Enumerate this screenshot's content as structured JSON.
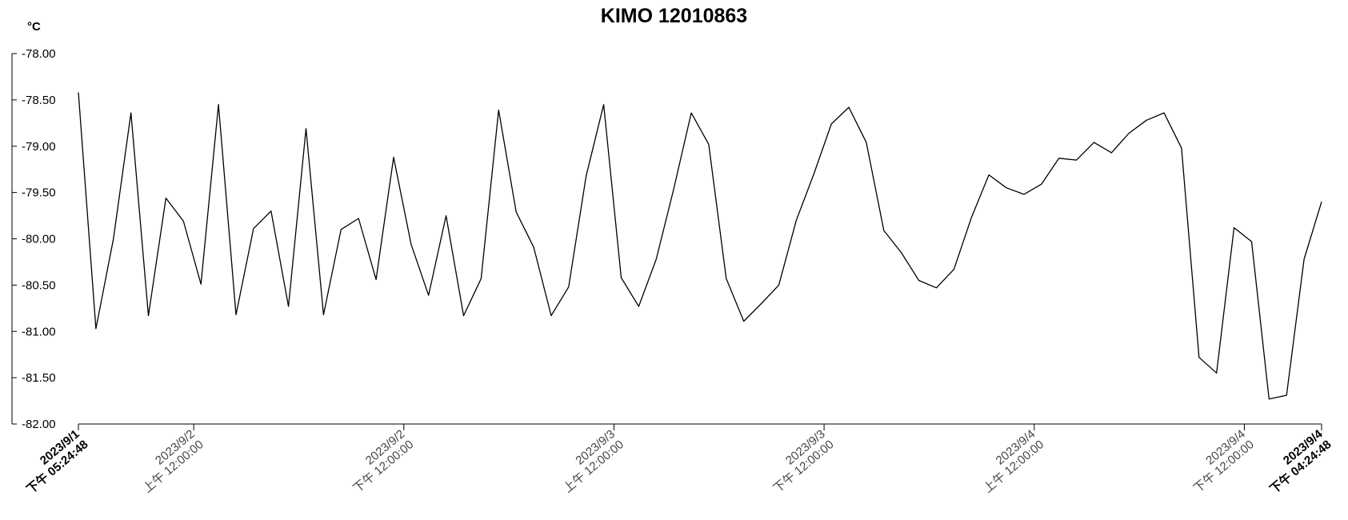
{
  "chart_data": {
    "type": "line",
    "title": "KIMO 12010863",
    "ylabel": "°C",
    "xlabel": "",
    "ylim": [
      -82.0,
      -78.0
    ],
    "yticks": [
      "-78.00",
      "-78.50",
      "-79.00",
      "-79.50",
      "-80.00",
      "-80.50",
      "-81.00",
      "-81.50",
      "-82.00"
    ],
    "xlim": [
      "2023-09-01T17:24:48",
      "2023-09-04T16:24:48"
    ],
    "xtick_labels": [
      {
        "t": "2023-09-01T17:24:48",
        "line1": "2023/9/1",
        "line2": "下午 05:24:48",
        "bold": true
      },
      {
        "t": "2023-09-02T00:00:00",
        "line1": "2023/9/2",
        "line2": "上午 12:00:00",
        "bold": false
      },
      {
        "t": "2023-09-02T12:00:00",
        "line1": "2023/9/2",
        "line2": "下午 12:00:00",
        "bold": false
      },
      {
        "t": "2023-09-03T00:00:00",
        "line1": "2023/9/3",
        "line2": "上午 12:00:00",
        "bold": false
      },
      {
        "t": "2023-09-03T12:00:00",
        "line1": "2023/9/3",
        "line2": "下午 12:00:00",
        "bold": false
      },
      {
        "t": "2023-09-04T00:00:00",
        "line1": "2023/9/4",
        "line2": "上午 12:00:00",
        "bold": false
      },
      {
        "t": "2023-09-04T12:00:00",
        "line1": "2023/9/4",
        "line2": "下午 12:00:00",
        "bold": false
      },
      {
        "t": "2023-09-04T16:24:48",
        "line1": "2023/9/4",
        "line2": "下午 04:24:48",
        "bold": true
      }
    ],
    "grid": false,
    "legend": "none",
    "series": [
      {
        "color": "#000000",
        "points": [
          [
            "2023-09-01T17:24:48",
            -78.42
          ],
          [
            "2023-09-01T18:24:48",
            -80.97
          ],
          [
            "2023-09-01T19:24:48",
            -80.0
          ],
          [
            "2023-09-01T20:24:48",
            -78.64
          ],
          [
            "2023-09-01T21:24:48",
            -80.83
          ],
          [
            "2023-09-01T22:24:48",
            -79.56
          ],
          [
            "2023-09-01T23:24:48",
            -79.81
          ],
          [
            "2023-09-02T00:24:48",
            -80.49
          ],
          [
            "2023-09-02T01:24:48",
            -78.55
          ],
          [
            "2023-09-02T02:24:48",
            -80.82
          ],
          [
            "2023-09-02T03:24:48",
            -79.89
          ],
          [
            "2023-09-02T04:24:48",
            -79.7
          ],
          [
            "2023-09-02T05:24:48",
            -80.73
          ],
          [
            "2023-09-02T06:24:48",
            -78.81
          ],
          [
            "2023-09-02T07:24:48",
            -80.82
          ],
          [
            "2023-09-02T08:24:48",
            -79.9
          ],
          [
            "2023-09-02T09:24:48",
            -79.78
          ],
          [
            "2023-09-02T10:24:48",
            -80.44
          ],
          [
            "2023-09-02T11:24:48",
            -79.12
          ],
          [
            "2023-09-02T12:24:48",
            -80.06
          ],
          [
            "2023-09-02T13:24:48",
            -80.61
          ],
          [
            "2023-09-02T14:24:48",
            -79.75
          ],
          [
            "2023-09-02T15:24:48",
            -80.83
          ],
          [
            "2023-09-02T16:24:48",
            -80.43
          ],
          [
            "2023-09-02T17:24:48",
            -78.61
          ],
          [
            "2023-09-02T18:24:48",
            -79.71
          ],
          [
            "2023-09-02T19:24:48",
            -80.09
          ],
          [
            "2023-09-02T20:24:48",
            -80.83
          ],
          [
            "2023-09-02T21:24:48",
            -80.52
          ],
          [
            "2023-09-02T22:24:48",
            -79.32
          ],
          [
            "2023-09-02T23:24:48",
            -78.55
          ],
          [
            "2023-09-03T00:24:48",
            -80.42
          ],
          [
            "2023-09-03T01:24:48",
            -80.73
          ],
          [
            "2023-09-03T02:24:48",
            -80.22
          ],
          [
            "2023-09-03T03:24:48",
            -79.46
          ],
          [
            "2023-09-03T04:24:48",
            -78.64
          ],
          [
            "2023-09-03T05:24:48",
            -78.98
          ],
          [
            "2023-09-03T06:24:48",
            -80.43
          ],
          [
            "2023-09-03T07:24:48",
            -80.89
          ],
          [
            "2023-09-03T08:24:48",
            -80.7
          ],
          [
            "2023-09-03T09:24:48",
            -80.5
          ],
          [
            "2023-09-03T10:24:48",
            -79.8
          ],
          [
            "2023-09-03T11:24:48",
            -79.3
          ],
          [
            "2023-09-03T12:24:48",
            -78.76
          ],
          [
            "2023-09-03T13:24:48",
            -78.58
          ],
          [
            "2023-09-03T14:24:48",
            -78.96
          ],
          [
            "2023-09-03T15:24:48",
            -79.91
          ],
          [
            "2023-09-03T16:24:48",
            -80.15
          ],
          [
            "2023-09-03T17:24:48",
            -80.45
          ],
          [
            "2023-09-03T18:24:48",
            -80.53
          ],
          [
            "2023-09-03T19:24:48",
            -80.33
          ],
          [
            "2023-09-03T20:24:48",
            -79.77
          ],
          [
            "2023-09-03T21:24:48",
            -79.31
          ],
          [
            "2023-09-03T22:24:48",
            -79.45
          ],
          [
            "2023-09-03T23:24:48",
            -79.52
          ],
          [
            "2023-09-04T00:24:48",
            -79.41
          ],
          [
            "2023-09-04T01:24:48",
            -79.13
          ],
          [
            "2023-09-04T02:24:48",
            -79.15
          ],
          [
            "2023-09-04T03:24:48",
            -78.96
          ],
          [
            "2023-09-04T04:24:48",
            -79.07
          ],
          [
            "2023-09-04T05:24:48",
            -78.86
          ],
          [
            "2023-09-04T06:24:48",
            -78.72
          ],
          [
            "2023-09-04T07:24:48",
            -78.64
          ],
          [
            "2023-09-04T08:24:48",
            -79.02
          ],
          [
            "2023-09-04T09:24:48",
            -81.28
          ],
          [
            "2023-09-04T10:24:48",
            -81.45
          ],
          [
            "2023-09-04T11:24:48",
            -79.88
          ],
          [
            "2023-09-04T12:24:48",
            -80.03
          ],
          [
            "2023-09-04T13:24:48",
            -81.73
          ],
          [
            "2023-09-04T14:24:48",
            -81.69
          ],
          [
            "2023-09-04T15:24:48",
            -80.22
          ],
          [
            "2023-09-04T16:24:48",
            -79.6
          ]
        ]
      }
    ]
  }
}
